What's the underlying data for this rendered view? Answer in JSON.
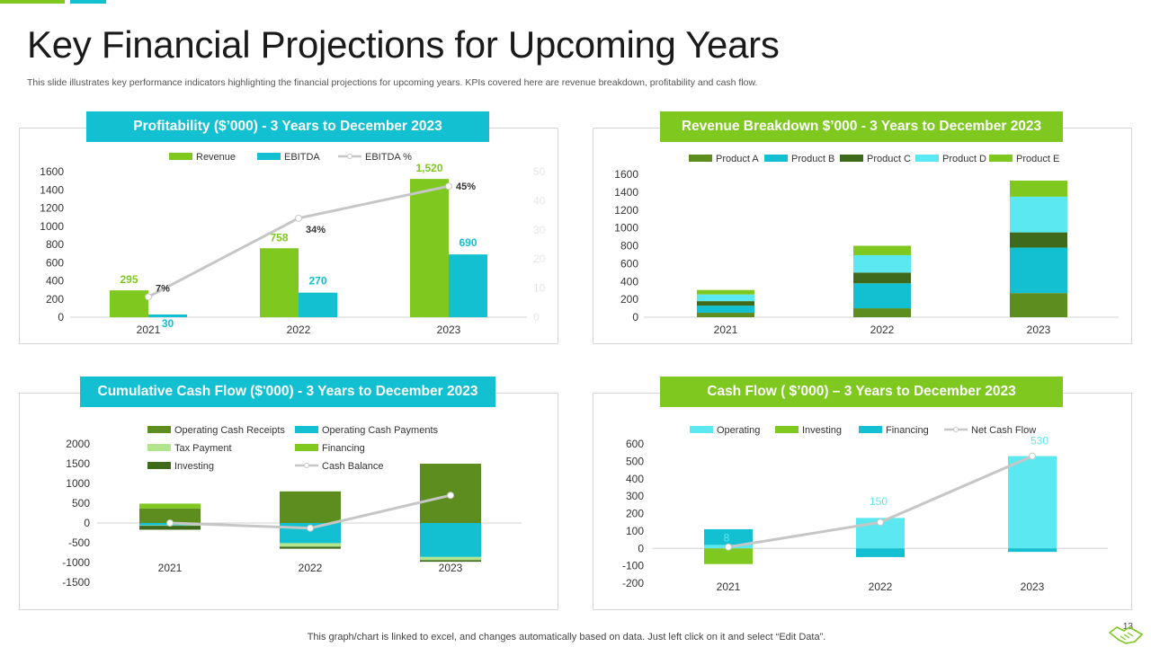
{
  "title": "Key Financial Projections for Upcoming Years",
  "subtitle": "This slide illustrates key performance indicators highlighting the financial projections for upcoming years. KPIs covered here are revenue breakdown, profitability and cash flow.",
  "footer": "This graph/chart is linked to excel,  and changes automatically based on data. Just left click on it and select “Edit Data”.",
  "page_number": "13",
  "colors": {
    "green": "#7ec81f",
    "cyan": "#12c0d2",
    "dark_green": "#5c8d1e",
    "light_cyan": "#5ce8f0",
    "darker_green": "#3f6a1b",
    "light_green": "#b2e58d",
    "gray_line": "#c6c6c6"
  },
  "panels": {
    "profit": {
      "header": "Profitability  ($’000) - 3 Years to December 2023"
    },
    "revenue": {
      "header": "Revenue Breakdown $’000 - 3 Years to December 2023"
    },
    "cumcash": {
      "header": "Cumulative Cash Flow ($'000) - 3 Years to December 2023"
    },
    "cashflow": {
      "header": "Cash Flow ( $’000) – 3 Years to December 2023"
    }
  },
  "chart_data": [
    {
      "id": "profitability",
      "type": "bar",
      "categories": [
        "2021",
        "2022",
        "2023"
      ],
      "series": [
        {
          "name": "Revenue",
          "values": [
            295,
            758,
            1520
          ],
          "labels": [
            "295",
            "758",
            "1,520"
          ]
        },
        {
          "name": "EBITDA",
          "values": [
            30,
            270,
            690
          ],
          "labels": [
            "30",
            "270",
            "690"
          ]
        },
        {
          "name": "EBITDA %",
          "type": "line",
          "axis": "secondary",
          "values": [
            7,
            34,
            45
          ],
          "labels": [
            "7%",
            "34%",
            "45%"
          ]
        }
      ],
      "ylim": [
        0,
        1600
      ],
      "yticks": [
        "0",
        "200",
        "400",
        "600",
        "800",
        "1000",
        "1200",
        "1400",
        "1600"
      ],
      "y2lim": [
        0,
        50
      ],
      "y2ticks": [
        "0",
        "10",
        "20",
        "30",
        "40",
        "50"
      ],
      "legend": "top",
      "grid": false
    },
    {
      "id": "revenue_breakdown",
      "type": "bar",
      "stacked": true,
      "categories": [
        "2021",
        "2022",
        "2023"
      ],
      "series": [
        {
          "name": "Product A",
          "values": [
            50,
            100,
            270
          ]
        },
        {
          "name": "Product B",
          "values": [
            80,
            280,
            510
          ]
        },
        {
          "name": "Product C",
          "values": [
            50,
            120,
            170
          ]
        },
        {
          "name": "Product D",
          "values": [
            75,
            195,
            400
          ]
        },
        {
          "name": "Product E",
          "values": [
            50,
            105,
            180
          ]
        }
      ],
      "ylim": [
        0,
        1600
      ],
      "yticks": [
        "0",
        "200",
        "400",
        "600",
        "800",
        "1000",
        "1200",
        "1400",
        "1600"
      ],
      "legend": "top",
      "grid": false
    },
    {
      "id": "cumulative_cash_flow",
      "type": "bar",
      "stacked": true,
      "categories": [
        "2021",
        "2022",
        "2023"
      ],
      "series": [
        {
          "name": "Operating Cash Receipts",
          "values": [
            370,
            800,
            1500
          ]
        },
        {
          "name": "Operating Cash Payments",
          "values": [
            -60,
            -510,
            -860
          ]
        },
        {
          "name": "Tax Payment",
          "values": [
            -10,
            -90,
            -80
          ]
        },
        {
          "name": "Financing",
          "values": [
            120,
            0,
            0
          ]
        },
        {
          "name": "Investing",
          "values": [
            -100,
            -50,
            -40
          ]
        },
        {
          "name": "Cash Balance",
          "type": "line",
          "values": [
            0,
            -130,
            700
          ]
        }
      ],
      "ylim": [
        -1500,
        2000
      ],
      "yticks": [
        "-1500",
        "-1000",
        "-500",
        "0",
        "500",
        "1000",
        "1500",
        "2000"
      ],
      "legend": "top",
      "grid": false
    },
    {
      "id": "cash_flow",
      "type": "bar",
      "stacked": true,
      "categories": [
        "2021",
        "2022",
        "2023"
      ],
      "series": [
        {
          "name": "Operating",
          "values": [
            20,
            175,
            530
          ]
        },
        {
          "name": "Investing",
          "values": [
            -90,
            0,
            0
          ]
        },
        {
          "name": "Financing",
          "values": [
            90,
            -50,
            -20
          ]
        },
        {
          "name": "Net Cash Flow",
          "type": "line",
          "values": [
            8,
            150,
            530
          ],
          "labels": [
            "8",
            "150",
            "530"
          ]
        }
      ],
      "ylim": [
        -200,
        600
      ],
      "yticks": [
        "-200",
        "-100",
        "0",
        "100",
        "200",
        "300",
        "400",
        "500",
        "600"
      ],
      "legend": "top",
      "grid": false
    }
  ]
}
